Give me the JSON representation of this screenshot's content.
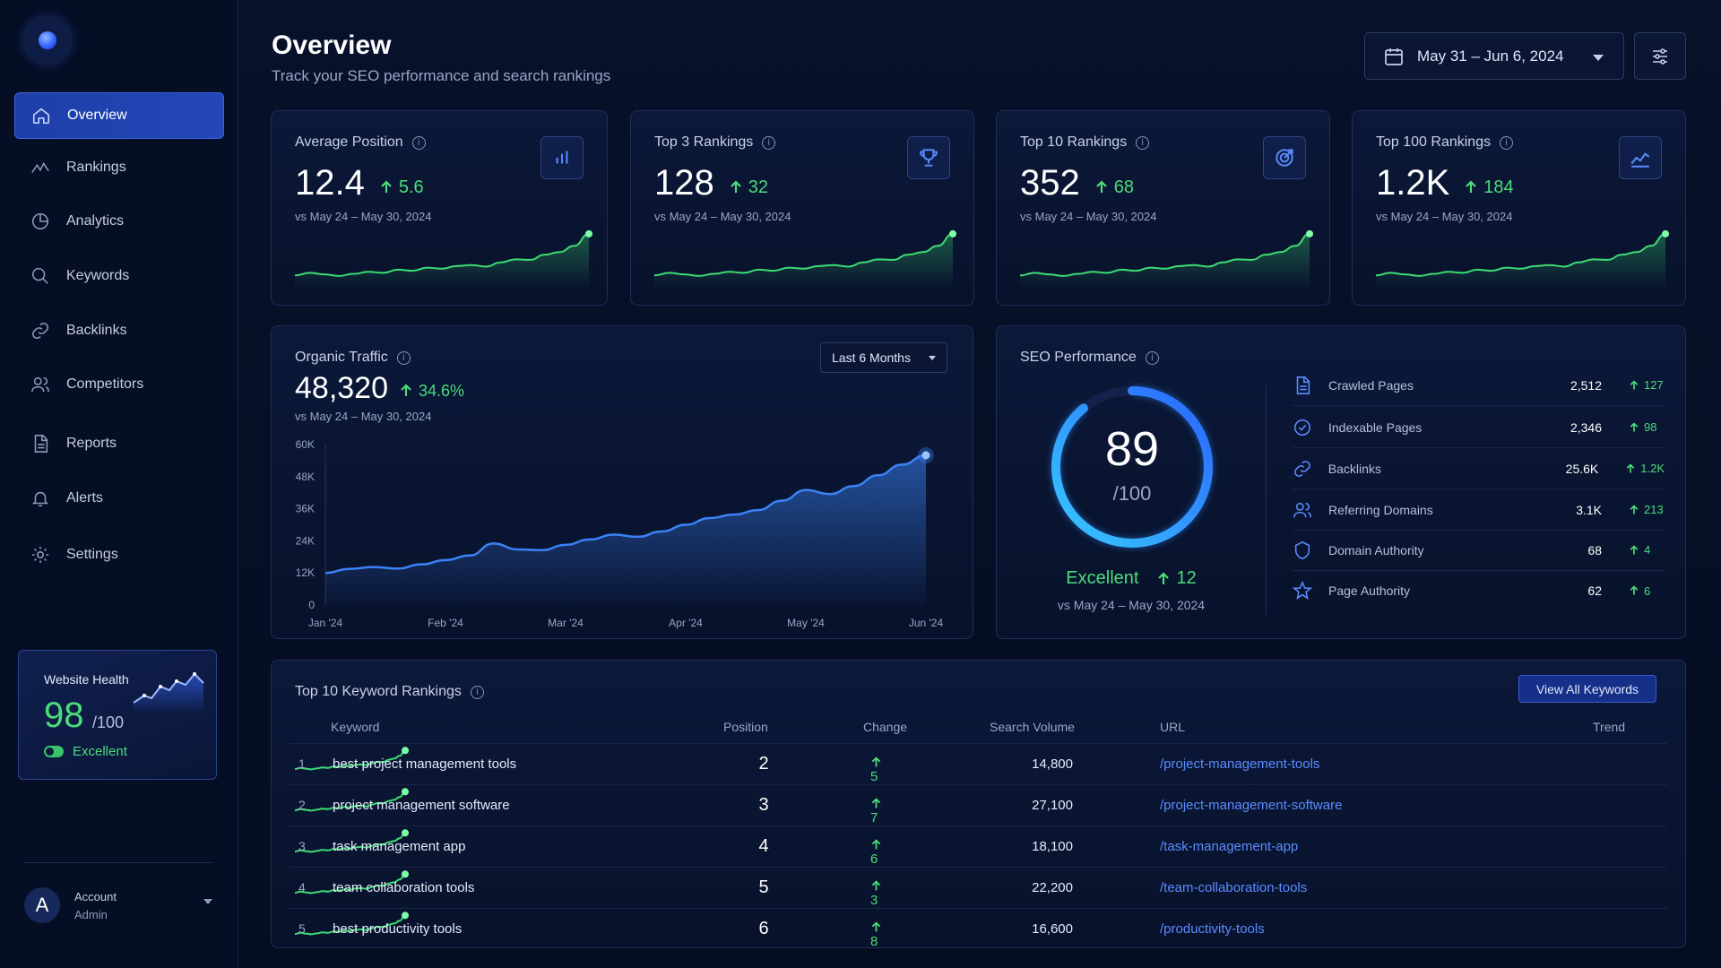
{
  "sidebar": {
    "items": [
      {
        "label": "Overview",
        "icon": "home-icon",
        "active": true
      },
      {
        "label": "Rankings",
        "icon": "trend-icon"
      },
      {
        "label": "Analytics",
        "icon": "pie-chart-icon"
      },
      {
        "label": "Keywords",
        "icon": "search-icon"
      },
      {
        "label": "Backlinks",
        "icon": "link-icon"
      },
      {
        "label": "Competitors",
        "icon": "users-icon"
      },
      {
        "label": "Reports",
        "icon": "document-icon"
      },
      {
        "label": "Alerts",
        "icon": "bell-icon"
      },
      {
        "label": "Settings",
        "icon": "gear-icon"
      }
    ],
    "health": {
      "title": "Website Health",
      "value": "98",
      "denom": "/100",
      "status": "Excellent"
    },
    "account": {
      "initial": "A",
      "name": "Account",
      "role": "Admin"
    }
  },
  "header": {
    "title": "Overview",
    "subtitle": "Track your SEO performance and search rankings",
    "date_range": "May 31 – Jun 6, 2024"
  },
  "kpis": [
    {
      "title": "Average Position",
      "value": "12.4",
      "change": "5.6",
      "compare": "vs May 24 – May 30, 2024",
      "icon": "bar-chart-icon"
    },
    {
      "title": "Top 3 Rankings",
      "value": "128",
      "change": "32",
      "compare": "vs May 24 – May 30, 2024",
      "icon": "trophy-icon"
    },
    {
      "title": "Top 10 Rankings",
      "value": "352",
      "change": "68",
      "compare": "vs May 24 – May 30, 2024",
      "icon": "target-icon"
    },
    {
      "title": "Top 100 Rankings",
      "value": "1.2K",
      "change": "184",
      "compare": "vs May 24 – May 30, 2024",
      "icon": "line-chart-icon"
    }
  ],
  "traffic": {
    "title": "Organic Traffic",
    "value": "48,320",
    "change": "34.6%",
    "compare": "vs May 24 – May 30, 2024",
    "range": "Last 6 Months"
  },
  "chart_data": {
    "type": "area",
    "title": "Organic Traffic",
    "x_ticks": [
      "Jan '24",
      "Feb '24",
      "Mar '24",
      "Apr '24",
      "May '24",
      "Jun '24"
    ],
    "y_ticks": [
      "0",
      "12K",
      "24K",
      "36K",
      "48K",
      "60K"
    ],
    "ylim": [
      0,
      60000
    ],
    "x": [
      0,
      0.2,
      0.4,
      0.6,
      0.8,
      1.0,
      1.2,
      1.4,
      1.6,
      1.8,
      2.0,
      2.2,
      2.4,
      2.6,
      2.8,
      3.0,
      3.2,
      3.4,
      3.6,
      3.8,
      4.0,
      4.2,
      4.4,
      4.6,
      4.8,
      5.0
    ],
    "values": [
      12000,
      13500,
      14200,
      13600,
      15200,
      16800,
      18500,
      23000,
      20800,
      20500,
      22500,
      24500,
      26300,
      25500,
      27500,
      30000,
      32500,
      33800,
      35500,
      39000,
      43000,
      41500,
      44500,
      48500,
      52500,
      56000
    ],
    "grid": false,
    "color": "#3b82f6"
  },
  "seo": {
    "title": "SEO Performance",
    "score": "89",
    "score_value": 89,
    "denom": "/100",
    "status": "Excellent",
    "change": "12",
    "compare": "vs May 24 – May 30, 2024",
    "metrics": [
      {
        "label": "Crawled Pages",
        "value": "2,512",
        "change": "127",
        "icon": "document-icon"
      },
      {
        "label": "Indexable Pages",
        "value": "2,346",
        "change": "98",
        "icon": "check-circle-icon"
      },
      {
        "label": "Backlinks",
        "value": "25.6K",
        "change": "1.2K",
        "icon": "link-icon"
      },
      {
        "label": "Referring Domains",
        "value": "3.1K",
        "change": "213",
        "icon": "users-icon"
      },
      {
        "label": "Domain Authority",
        "value": "68",
        "change": "4",
        "icon": "shield-icon"
      },
      {
        "label": "Page Authority",
        "value": "62",
        "change": "6",
        "icon": "star-icon"
      }
    ]
  },
  "keywords": {
    "title": "Top 10 Keyword Rankings",
    "view_all": "View All Keywords",
    "columns": [
      "Keyword",
      "Position",
      "Change",
      "Search Volume",
      "URL",
      "Trend"
    ],
    "rows": [
      {
        "rank": "1",
        "keyword": "best project management tools",
        "position": "2",
        "change": "5",
        "volume": "14,800",
        "url": "/project-management-tools"
      },
      {
        "rank": "2",
        "keyword": "project management software",
        "position": "3",
        "change": "7",
        "volume": "27,100",
        "url": "/project-management-software"
      },
      {
        "rank": "3",
        "keyword": "task management app",
        "position": "4",
        "change": "6",
        "volume": "18,100",
        "url": "/task-management-app"
      },
      {
        "rank": "4",
        "keyword": "team collaboration tools",
        "position": "5",
        "change": "3",
        "volume": "22,200",
        "url": "/team-collaboration-tools"
      },
      {
        "rank": "5",
        "keyword": "best productivity tools",
        "position": "6",
        "change": "8",
        "volume": "16,600",
        "url": "/productivity-tools"
      }
    ]
  },
  "colors": {
    "accent": "#2347b8",
    "positive": "#4bdc7a",
    "link": "#5b8cff",
    "background": "#061027"
  }
}
